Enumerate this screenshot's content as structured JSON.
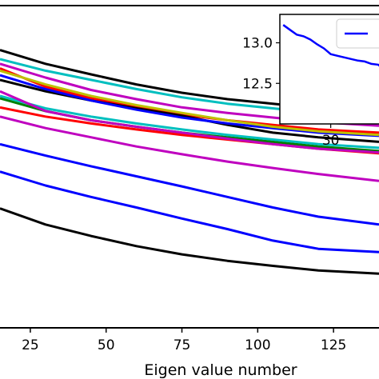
{
  "chart_data": [
    {
      "type": "line",
      "title": "",
      "xlabel": "Eigen value number",
      "ylabel": "",
      "xlim": [
        15,
        140
      ],
      "ylim": [
        7.2,
        14.2
      ],
      "xticks": [
        25,
        50,
        75,
        100,
        125
      ],
      "grid": false,
      "series": [
        {
          "color": "#000000",
          "x": [
            15,
            30,
            45,
            60,
            75,
            90,
            105,
            120,
            140
          ],
          "y": [
            13.25,
            12.95,
            12.72,
            12.5,
            12.32,
            12.18,
            12.08,
            11.98,
            11.9
          ]
        },
        {
          "color": "#00bfbf",
          "x": [
            15,
            30,
            45,
            60,
            75,
            90,
            105,
            120,
            140
          ],
          "y": [
            13.05,
            12.8,
            12.6,
            12.4,
            12.22,
            12.08,
            11.98,
            11.88,
            11.78
          ]
        },
        {
          "color": "#bf00bf",
          "x": [
            15,
            30,
            45,
            60,
            75,
            90,
            105,
            120,
            140
          ],
          "y": [
            12.95,
            12.65,
            12.38,
            12.18,
            12.0,
            11.88,
            11.78,
            11.68,
            11.6
          ]
        },
        {
          "color": "#ff0000",
          "x": [
            15,
            30,
            45,
            60,
            75,
            90,
            105,
            120,
            140
          ],
          "y": [
            12.85,
            12.45,
            12.2,
            12.0,
            11.85,
            11.72,
            11.62,
            11.52,
            11.45
          ]
        },
        {
          "color": "#000000",
          "x": [
            15,
            30,
            45,
            60,
            75,
            90,
            105,
            120,
            140
          ],
          "y": [
            12.6,
            12.35,
            12.15,
            11.98,
            11.82,
            11.62,
            11.45,
            11.35,
            11.25
          ]
        },
        {
          "color": "#0000ff",
          "x": [
            15,
            30,
            45,
            60,
            75,
            90,
            105,
            120,
            140
          ],
          "y": [
            12.7,
            12.4,
            12.15,
            11.95,
            11.78,
            11.65,
            11.55,
            11.45,
            11.38
          ]
        },
        {
          "color": "#bfbf00",
          "x": [
            15,
            30,
            45,
            60,
            75,
            90,
            105,
            120,
            140
          ],
          "y": [
            12.8,
            12.5,
            12.25,
            12.05,
            11.88,
            11.72,
            11.58,
            11.48,
            11.4
          ]
        },
        {
          "color": "#008000",
          "x": [
            15,
            30,
            45,
            60,
            75,
            90,
            105,
            120,
            140
          ],
          "y": [
            12.2,
            11.92,
            11.72,
            11.58,
            11.45,
            11.35,
            11.25,
            11.15,
            11.05
          ]
        },
        {
          "color": "#00bfbf",
          "x": [
            15,
            30,
            45,
            60,
            75,
            90,
            105,
            120,
            140
          ],
          "y": [
            12.25,
            11.98,
            11.8,
            11.65,
            11.52,
            11.4,
            11.3,
            11.2,
            11.12
          ]
        },
        {
          "color": "#ff0000",
          "x": [
            15,
            30,
            45,
            60,
            75,
            90,
            105,
            120,
            140
          ],
          "y": [
            12.0,
            11.8,
            11.65,
            11.52,
            11.4,
            11.3,
            11.2,
            11.1,
            11.0
          ]
        },
        {
          "color": "#bf00bf",
          "x": [
            15,
            30,
            45,
            60,
            75,
            90,
            105,
            120,
            140
          ],
          "y": [
            12.35,
            11.92,
            11.72,
            11.58,
            11.45,
            11.32,
            11.2,
            11.1,
            11.02
          ]
        },
        {
          "color": "#bf00bf",
          "x": [
            15,
            30,
            45,
            60,
            75,
            90,
            105,
            120,
            140
          ],
          "y": [
            11.8,
            11.55,
            11.35,
            11.15,
            10.98,
            10.82,
            10.68,
            10.55,
            10.4
          ]
        },
        {
          "color": "#0000ff",
          "x": [
            15,
            30,
            45,
            60,
            75,
            90,
            105,
            120,
            140
          ],
          "y": [
            11.2,
            10.95,
            10.72,
            10.5,
            10.28,
            10.05,
            9.82,
            9.62,
            9.45
          ]
        },
        {
          "color": "#0000ff",
          "x": [
            15,
            30,
            45,
            60,
            75,
            90,
            105,
            120,
            140
          ],
          "y": [
            10.6,
            10.3,
            10.05,
            9.82,
            9.58,
            9.35,
            9.1,
            8.92,
            8.85
          ]
        },
        {
          "color": "#000000",
          "x": [
            15,
            30,
            45,
            60,
            75,
            90,
            105,
            120,
            140
          ],
          "y": [
            9.8,
            9.45,
            9.2,
            8.98,
            8.8,
            8.66,
            8.55,
            8.45,
            8.38
          ]
        }
      ]
    },
    {
      "type": "line",
      "title": "",
      "inset": true,
      "xlabel": "",
      "ylabel": "",
      "xlim": [
        15,
        48
      ],
      "ylim": [
        12.0,
        13.35
      ],
      "xticks": [
        30
      ],
      "yticks": [
        "12.5",
        "13.0"
      ],
      "legend_placement": "top-right",
      "series": [
        {
          "color": "#0000ff",
          "x": [
            16,
            18,
            20,
            22,
            24,
            26,
            28,
            30,
            32,
            34,
            36,
            38,
            40,
            42,
            44,
            46,
            48
          ],
          "y": [
            13.22,
            13.16,
            13.1,
            13.08,
            13.04,
            12.98,
            12.93,
            12.86,
            12.84,
            12.82,
            12.8,
            12.78,
            12.77,
            12.74,
            12.73,
            12.66,
            12.55
          ]
        }
      ]
    }
  ]
}
